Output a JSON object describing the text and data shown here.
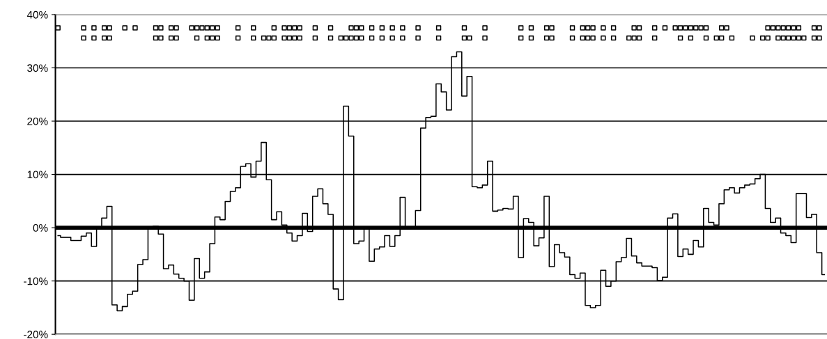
{
  "chart_data": {
    "type": "step",
    "categories": [
      null,
      null,
      null,
      null,
      null,
      null,
      null,
      null,
      null,
      null,
      null,
      null,
      null,
      null,
      null,
      null,
      null,
      null,
      null,
      null,
      null,
      null,
      null,
      null,
      null,
      null,
      null,
      null,
      null,
      null,
      null,
      null,
      null,
      null,
      null,
      null,
      null,
      null,
      null,
      null,
      null,
      null,
      null,
      null,
      null,
      null,
      null,
      null,
      null,
      null,
      null,
      null,
      null,
      null,
      null,
      null,
      null,
      null,
      null,
      null,
      null,
      null,
      null,
      null,
      null,
      null,
      null,
      null,
      null,
      null,
      null,
      null,
      null,
      null,
      null,
      null,
      null,
      null,
      null,
      null,
      null,
      null,
      null,
      null,
      null,
      null,
      null,
      null,
      null,
      null,
      null,
      null,
      null,
      null,
      null,
      null,
      null,
      null,
      null,
      null,
      null,
      null,
      null,
      null,
      null,
      null,
      null,
      null,
      null,
      null,
      null,
      null,
      null,
      null,
      null,
      null,
      null,
      null,
      null,
      null,
      null,
      null,
      null,
      null,
      null,
      null,
      null,
      null,
      null,
      null,
      null,
      null,
      null,
      null,
      null,
      null,
      null,
      null,
      null,
      null,
      null,
      null,
      null,
      null,
      null,
      null,
      null,
      null,
      null,
      null
    ],
    "series": [
      {
        "color": "#000000",
        "marker": "none",
        "values": [
          -1.5,
          -1.8,
          -1.8,
          -2.4,
          -2.4,
          -1.6,
          -1.0,
          -3.5,
          0,
          1.8,
          4,
          -14.5,
          -15.6,
          -14.8,
          -12.5,
          -11.9,
          -6.9,
          -6.0,
          0,
          0.3,
          -1.2,
          -7.7,
          -7.0,
          -8.7,
          -9.5,
          -10.0,
          -13.6,
          -5.8,
          -9.5,
          -8.3,
          -3.0,
          2.0,
          1.5,
          4.9,
          6.8,
          7.5,
          11.5,
          12.0,
          9.5,
          12.5,
          16.0,
          9.0,
          1.5,
          3.0,
          0.5,
          -1.0,
          -2.5,
          -1.5,
          2.7,
          -0.7,
          5.9,
          7.3,
          4.5,
          2.5,
          -11.5,
          -13.5,
          22.8,
          17.2,
          -3.0,
          -2.5,
          0,
          -6.3,
          -4.0,
          -3.6,
          -1.5,
          -3.5,
          -1.5,
          5.7,
          0,
          0,
          3.2,
          18.7,
          20.7,
          20.9,
          27,
          25.5,
          22.1,
          32.1,
          33.0,
          24.7,
          28.4,
          7.7,
          7.5,
          8.0,
          12.5,
          3.1,
          3.3,
          3.6,
          3.5,
          5.9,
          -5.6,
          1.7,
          1.0,
          -3.4,
          -1.9,
          5.9,
          -7.3,
          -3.2,
          -4.7,
          -5.5,
          -8.8,
          -9.5,
          -8.5,
          -14.6,
          -15.0,
          -14.6,
          -8.0,
          -11.0,
          -10.0,
          -6.4,
          -5.6,
          -2.0,
          -5.3,
          -6.6,
          -7.2,
          -7.2,
          -7.5,
          -9.9,
          -9.3,
          1.8,
          2.6,
          -5.4,
          -4.0,
          -5.0,
          -2.4,
          -3.6,
          3.6,
          1.0,
          0.5,
          4.5,
          7.1,
          7.5,
          6.5,
          7.5,
          8.0,
          8.2,
          9.2,
          10.0,
          3.6,
          1.0,
          1.8,
          -1.0,
          -1.5,
          -2.8,
          6.4,
          6.4,
          1.9,
          2.5,
          -4.7,
          -8.8
        ]
      },
      {
        "type": "scatter",
        "color": "#000000",
        "marker": "square",
        "values": [
          37.5,
          null,
          null,
          null,
          null,
          37.5,
          null,
          37.5,
          null,
          37.5,
          37.5,
          null,
          null,
          37.5,
          null,
          37.5,
          null,
          null,
          null,
          37.5,
          37.5,
          null,
          37.5,
          37.5,
          null,
          null,
          37.5,
          37.5,
          37.5,
          37.5,
          37.5,
          37.5,
          null,
          null,
          null,
          37.5,
          null,
          null,
          37.5,
          null,
          null,
          null,
          37.5,
          null,
          37.5,
          37.5,
          37.5,
          37.5,
          null,
          null,
          37.5,
          null,
          null,
          37.5,
          null,
          null,
          null,
          37.5,
          37.5,
          37.5,
          null,
          37.5,
          null,
          37.5,
          null,
          37.5,
          null,
          37.5,
          null,
          null,
          37.5,
          null,
          null,
          null,
          37.5,
          null,
          null,
          null,
          null,
          37.5,
          null,
          null,
          null,
          37.5,
          null,
          null,
          null,
          null,
          null,
          null,
          37.5,
          null,
          37.5,
          null,
          null,
          37.5,
          37.5,
          null,
          null,
          null,
          37.5,
          null,
          37.5,
          37.5,
          37.5,
          null,
          37.5,
          null,
          37.5,
          null,
          null,
          null,
          37.5,
          37.5,
          null,
          null,
          37.5,
          null,
          37.5,
          null,
          37.5,
          37.5,
          37.5,
          37.5,
          37.5,
          37.5,
          37.5,
          null,
          null,
          37.5,
          37.5,
          null,
          null,
          null,
          null,
          null,
          null,
          null,
          37.5,
          37.5,
          37.5,
          37.5,
          37.5,
          37.5,
          37.5,
          null,
          null,
          37.5,
          37.5,
          null
        ]
      },
      {
        "type": "scatter",
        "color": "#000000",
        "marker": "square",
        "values": [
          null,
          null,
          null,
          null,
          null,
          35.6,
          null,
          35.6,
          null,
          35.6,
          35.6,
          null,
          null,
          null,
          null,
          null,
          null,
          null,
          null,
          35.6,
          35.6,
          null,
          35.6,
          35.6,
          null,
          null,
          null,
          35.6,
          null,
          35.6,
          35.6,
          35.6,
          null,
          null,
          null,
          35.6,
          null,
          null,
          35.6,
          null,
          35.6,
          35.6,
          35.6,
          null,
          35.6,
          35.6,
          35.6,
          35.6,
          null,
          null,
          35.6,
          null,
          null,
          35.6,
          null,
          35.6,
          35.6,
          35.6,
          35.6,
          35.6,
          null,
          35.6,
          null,
          35.6,
          null,
          35.6,
          null,
          35.6,
          null,
          null,
          35.6,
          null,
          null,
          null,
          35.6,
          null,
          null,
          null,
          null,
          35.6,
          35.6,
          null,
          null,
          35.6,
          null,
          null,
          null,
          null,
          null,
          null,
          35.6,
          null,
          35.6,
          null,
          null,
          35.6,
          35.6,
          null,
          null,
          null,
          35.6,
          null,
          35.6,
          35.6,
          35.6,
          null,
          35.6,
          null,
          35.6,
          null,
          null,
          35.6,
          35.6,
          35.6,
          null,
          null,
          35.6,
          null,
          null,
          null,
          null,
          35.6,
          null,
          35.6,
          null,
          null,
          35.6,
          null,
          35.6,
          35.6,
          null,
          35.6,
          null,
          null,
          null,
          35.6,
          null,
          35.6,
          35.6,
          null,
          35.6,
          35.6,
          35.6,
          35.6,
          35.6,
          35.6,
          null,
          35.6,
          35.6,
          null
        ]
      }
    ],
    "ylim": [
      -20,
      40
    ],
    "yticks": [
      {
        "value": -20,
        "label": "-20%"
      },
      {
        "value": -10,
        "label": "-10%"
      },
      {
        "value": 0,
        "label": "0%"
      },
      {
        "value": 10,
        "label": "10%"
      },
      {
        "value": 20,
        "label": "20%"
      },
      {
        "value": 30,
        "label": "30%"
      },
      {
        "value": 40,
        "label": "40%"
      }
    ],
    "grid": "y",
    "tick_labels": "y",
    "ref_lines": [
      {
        "axis": "y",
        "value": 0,
        "color": "#000000",
        "line_style": "solid"
      }
    ]
  }
}
